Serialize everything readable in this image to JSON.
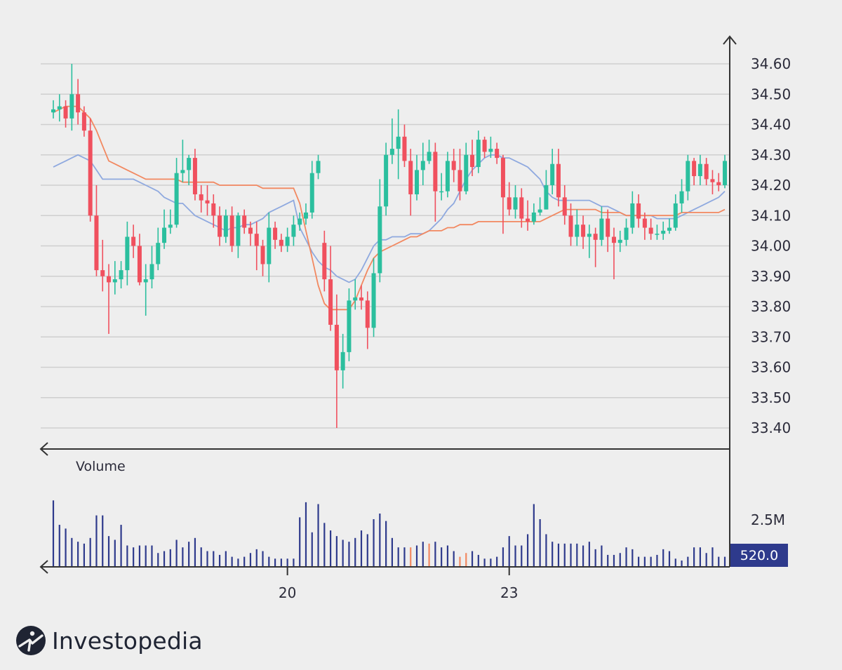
{
  "brand": {
    "name": "Investopedia",
    "icon": "investopedia-logo-icon",
    "mark_color": "#1f2433"
  },
  "colors": {
    "up": "#2bbf9e",
    "down": "#f0505e",
    "sma_fast": "#8fa9df",
    "sma_slow": "#f28860",
    "volume": "#2e3a8c",
    "volume_alt": "#f28860",
    "grid": "#cfcfcf",
    "axis": "#333333",
    "background": "#eeeeee",
    "volume_badge": "#2e3a8c"
  },
  "chart_data": {
    "type": "candlestick",
    "title": "",
    "price_axis": {
      "side": "right",
      "ylim": [
        33.4,
        34.6
      ],
      "ticks": [
        34.6,
        34.5,
        34.4,
        34.3,
        34.2,
        34.1,
        34.0,
        33.9,
        33.8,
        33.7,
        33.6,
        33.5,
        33.4
      ],
      "tick_labels": [
        "34.60",
        "34.50",
        "34.40",
        "34.30",
        "34.20",
        "34.10",
        "34.00",
        "33.90",
        "33.80",
        "33.70",
        "33.60",
        "33.50",
        "33.40"
      ]
    },
    "x_axis": {
      "count": 110,
      "tick_labels": [
        {
          "index": 38,
          "label": "20"
        },
        {
          "index": 74,
          "label": "23"
        }
      ]
    },
    "grid": true,
    "candles": {
      "open": [
        34.44,
        34.45,
        34.46,
        34.42,
        34.5,
        34.44,
        34.38,
        34.1,
        33.92,
        33.9,
        33.88,
        33.89,
        33.92,
        34.03,
        34.0,
        33.88,
        33.89,
        33.94,
        34.01,
        34.06,
        34.07,
        34.24,
        34.25,
        34.29,
        34.17,
        34.15,
        34.14,
        34.1,
        34.03,
        34.1,
        34.0,
        34.1,
        34.06,
        34.04,
        34.0,
        33.94,
        34.06,
        34.02,
        34.0,
        34.03,
        34.07,
        34.09,
        34.11,
        34.24,
        34.01,
        33.89,
        33.74,
        33.59,
        33.65,
        33.82,
        33.83,
        33.82,
        33.73,
        33.91,
        34.13,
        34.3,
        34.32,
        34.36,
        34.28,
        34.17,
        34.25,
        34.28,
        34.31,
        34.18,
        34.18,
        34.28,
        34.25,
        34.18,
        34.3,
        34.26,
        34.35,
        34.31,
        34.32,
        34.29,
        34.16,
        34.12,
        34.16,
        34.09,
        34.08,
        34.11,
        34.12,
        34.2,
        34.27,
        34.16,
        34.1,
        34.03,
        34.07,
        34.03,
        34.04,
        34.02,
        34.09,
        34.03,
        34.01,
        34.02,
        34.06,
        34.14,
        34.09,
        34.06,
        34.04,
        34.04,
        34.05,
        34.06,
        34.14,
        34.18,
        34.28,
        34.23,
        34.27,
        34.22,
        34.21,
        34.2
      ],
      "close": [
        34.45,
        34.46,
        34.42,
        34.5,
        34.44,
        34.38,
        34.1,
        33.92,
        33.9,
        33.88,
        33.89,
        33.92,
        34.03,
        34.0,
        33.88,
        33.89,
        33.94,
        34.01,
        34.06,
        34.07,
        34.24,
        34.25,
        34.29,
        34.17,
        34.15,
        34.14,
        34.1,
        34.03,
        34.1,
        34.0,
        34.1,
        34.06,
        34.04,
        34.0,
        33.94,
        34.06,
        34.02,
        34.0,
        34.03,
        34.07,
        34.09,
        34.11,
        34.24,
        34.28,
        33.89,
        33.74,
        33.59,
        33.65,
        33.82,
        33.83,
        33.82,
        33.73,
        33.91,
        34.13,
        34.3,
        34.32,
        34.36,
        34.28,
        34.17,
        34.25,
        34.28,
        34.31,
        34.18,
        34.18,
        34.28,
        34.25,
        34.18,
        34.3,
        34.26,
        34.35,
        34.31,
        34.32,
        34.29,
        34.16,
        34.12,
        34.16,
        34.09,
        34.08,
        34.11,
        34.12,
        34.2,
        34.27,
        34.16,
        34.1,
        34.03,
        34.07,
        34.03,
        34.04,
        34.02,
        34.09,
        34.03,
        34.01,
        34.02,
        34.06,
        34.14,
        34.09,
        34.06,
        34.04,
        34.04,
        34.05,
        34.06,
        34.14,
        34.18,
        34.28,
        34.23,
        34.27,
        34.22,
        34.21,
        34.2,
        34.28
      ],
      "high": [
        34.48,
        34.5,
        34.48,
        34.6,
        34.55,
        34.46,
        34.42,
        34.2,
        34.02,
        33.94,
        33.95,
        33.95,
        34.08,
        34.07,
        34.04,
        33.94,
        34.0,
        34.06,
        34.12,
        34.12,
        34.29,
        34.35,
        34.3,
        34.32,
        34.2,
        34.2,
        34.17,
        34.13,
        34.12,
        34.13,
        34.11,
        34.12,
        34.08,
        34.08,
        34.02,
        34.11,
        34.08,
        34.04,
        34.06,
        34.1,
        34.11,
        34.14,
        34.28,
        34.3,
        34.05,
        34.0,
        33.84,
        33.71,
        33.86,
        33.89,
        33.87,
        33.85,
        33.96,
        34.22,
        34.34,
        34.42,
        34.45,
        34.4,
        34.32,
        34.3,
        34.34,
        34.35,
        34.34,
        34.24,
        34.31,
        34.32,
        34.32,
        34.34,
        34.35,
        34.38,
        34.36,
        34.36,
        34.34,
        34.3,
        34.21,
        34.2,
        34.19,
        34.15,
        34.14,
        34.16,
        34.25,
        34.32,
        34.32,
        34.2,
        34.14,
        34.12,
        34.1,
        34.07,
        34.06,
        34.13,
        34.12,
        34.06,
        34.05,
        34.09,
        34.18,
        34.17,
        34.11,
        34.09,
        34.07,
        34.08,
        34.09,
        34.17,
        34.22,
        34.3,
        34.29,
        34.3,
        34.29,
        34.25,
        34.24,
        34.3
      ],
      "low": [
        34.42,
        34.41,
        34.39,
        34.38,
        34.4,
        34.36,
        34.08,
        33.9,
        33.85,
        33.71,
        33.84,
        33.86,
        33.87,
        33.96,
        33.87,
        33.77,
        33.86,
        33.92,
        33.99,
        34.04,
        34.06,
        34.21,
        34.2,
        34.15,
        34.11,
        34.1,
        34.06,
        34.0,
        34.01,
        33.98,
        33.96,
        34.04,
        34.0,
        33.92,
        33.9,
        33.88,
        33.99,
        33.98,
        33.98,
        34.0,
        34.05,
        34.07,
        34.09,
        34.22,
        33.85,
        33.72,
        33.4,
        33.53,
        33.62,
        33.79,
        33.79,
        33.66,
        33.7,
        33.88,
        34.1,
        34.27,
        34.22,
        34.26,
        34.1,
        34.15,
        34.2,
        34.27,
        34.08,
        34.15,
        34.16,
        34.21,
        34.15,
        34.17,
        34.23,
        34.24,
        34.29,
        34.29,
        34.27,
        34.04,
        34.1,
        34.09,
        34.06,
        34.05,
        34.07,
        34.1,
        34.12,
        34.17,
        34.13,
        34.07,
        34.0,
        34.0,
        33.99,
        33.96,
        33.93,
        34.0,
        33.98,
        33.89,
        33.98,
        34.0,
        34.04,
        34.06,
        34.02,
        34.02,
        34.02,
        34.02,
        34.04,
        34.05,
        34.11,
        34.15,
        34.2,
        34.2,
        34.2,
        34.17,
        34.18,
        34.19
      ]
    },
    "series": [
      {
        "kind": "moving_average",
        "color": "#8fa9df",
        "values": [
          34.26,
          34.27,
          34.28,
          34.29,
          34.3,
          34.29,
          34.28,
          34.25,
          34.22,
          34.22,
          34.22,
          34.22,
          34.22,
          34.22,
          34.21,
          34.2,
          34.19,
          34.18,
          34.16,
          34.15,
          34.14,
          34.14,
          34.12,
          34.1,
          34.09,
          34.08,
          34.07,
          34.06,
          34.05,
          34.06,
          34.06,
          34.07,
          34.07,
          34.08,
          34.09,
          34.11,
          34.12,
          34.13,
          34.14,
          34.15,
          34.06,
          34.02,
          33.98,
          33.95,
          33.93,
          33.92,
          33.9,
          33.89,
          33.88,
          33.89,
          33.92,
          33.96,
          34.0,
          34.02,
          34.02,
          34.03,
          34.03,
          34.03,
          34.04,
          34.04,
          34.04,
          34.05,
          34.07,
          34.09,
          34.12,
          34.14,
          34.18,
          34.22,
          34.25,
          34.27,
          34.29,
          34.3,
          34.3,
          34.29,
          34.29,
          34.28,
          34.27,
          34.26,
          34.24,
          34.22,
          34.18,
          34.16,
          34.15,
          34.15,
          34.15,
          34.15,
          34.15,
          34.15,
          34.14,
          34.13,
          34.13,
          34.12,
          34.11,
          34.1,
          34.1,
          34.1,
          34.1,
          34.1,
          34.09,
          34.09,
          34.09,
          34.09,
          34.1,
          34.11,
          34.12,
          34.13,
          34.14,
          34.15,
          34.16,
          34.18
        ]
      },
      {
        "kind": "moving_average",
        "color": "#f28860",
        "values": [
          34.44,
          34.45,
          34.46,
          34.46,
          34.46,
          34.44,
          34.42,
          34.38,
          34.33,
          34.28,
          34.27,
          34.26,
          34.25,
          34.24,
          34.23,
          34.22,
          34.22,
          34.22,
          34.22,
          34.22,
          34.22,
          34.21,
          34.21,
          34.21,
          34.21,
          34.21,
          34.21,
          34.2,
          34.2,
          34.2,
          34.2,
          34.2,
          34.2,
          34.2,
          34.19,
          34.19,
          34.19,
          34.19,
          34.19,
          34.19,
          34.14,
          34.05,
          33.96,
          33.87,
          33.81,
          33.79,
          33.79,
          33.79,
          33.79,
          33.82,
          33.87,
          33.92,
          33.96,
          33.98,
          33.99,
          34.0,
          34.01,
          34.02,
          34.03,
          34.03,
          34.04,
          34.05,
          34.05,
          34.05,
          34.06,
          34.06,
          34.07,
          34.07,
          34.07,
          34.08,
          34.08,
          34.08,
          34.08,
          34.08,
          34.08,
          34.08,
          34.08,
          34.08,
          34.08,
          34.08,
          34.09,
          34.1,
          34.11,
          34.12,
          34.12,
          34.12,
          34.12,
          34.12,
          34.12,
          34.11,
          34.11,
          34.11,
          34.11,
          34.1,
          34.1,
          34.1,
          34.1,
          34.1,
          34.1,
          34.1,
          34.1,
          34.1,
          34.11,
          34.11,
          34.11,
          34.11,
          34.11,
          34.11,
          34.11,
          34.12
        ]
      }
    ],
    "volume": {
      "label": "Volume",
      "tick_label": "2.5M",
      "tick_value": 2.5,
      "max": 3.6,
      "values": [
        3.5,
        2.2,
        2.0,
        1.5,
        1.3,
        1.2,
        1.5,
        2.7,
        2.7,
        1.6,
        1.4,
        2.2,
        1.1,
        1.0,
        1.1,
        1.1,
        1.1,
        0.7,
        0.8,
        0.9,
        1.4,
        1.0,
        1.3,
        1.5,
        1.0,
        0.8,
        0.8,
        0.6,
        0.8,
        0.5,
        0.4,
        0.5,
        0.7,
        0.9,
        0.8,
        0.5,
        0.4,
        0.4,
        0.4,
        0.4,
        2.6,
        3.4,
        1.8,
        3.3,
        2.3,
        1.9,
        1.6,
        1.4,
        1.3,
        1.5,
        1.9,
        1.7,
        2.5,
        2.8,
        2.4,
        1.5,
        1.0,
        1.0,
        1.0,
        1.1,
        1.3,
        1.2,
        1.3,
        1.0,
        1.1,
        0.8,
        0.5,
        0.7,
        0.8,
        0.6,
        0.4,
        0.4,
        0.5,
        1.0,
        1.6,
        1.1,
        1.1,
        1.7,
        3.3,
        2.5,
        1.7,
        1.3,
        1.2,
        1.2,
        1.2,
        1.2,
        1.1,
        1.3,
        0.9,
        1.1,
        0.6,
        0.6,
        0.7,
        1.0,
        0.9,
        0.5,
        0.5,
        0.5,
        0.6,
        0.9,
        0.8,
        0.4,
        0.3,
        0.5,
        1.0,
        1.0,
        0.7,
        1.0,
        0.5,
        0.5
      ],
      "alt_color_indices": [
        58,
        61,
        66,
        67
      ],
      "last_badge": "520.0"
    }
  }
}
